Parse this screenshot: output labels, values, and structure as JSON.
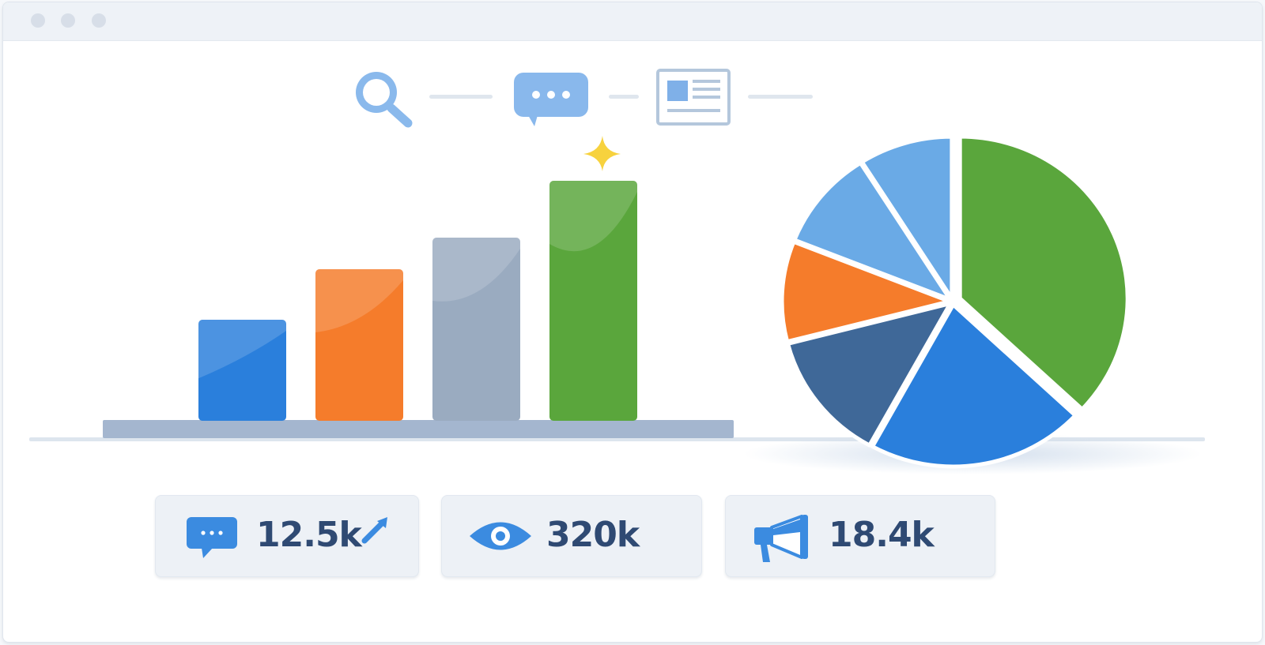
{
  "colors": {
    "blue": "#2a7fdc",
    "orange": "#f57c2b",
    "gray": "#9aabc0",
    "green": "#5aa63c",
    "dark_blue": "#3f6898",
    "light_blue": "#6aaae6",
    "stat_text": "#2f4a73",
    "icon_blue": "#3b8be0",
    "sparkle": "#f7d23e"
  },
  "toolbar_icons": [
    "search-icon",
    "chat-bubble-icon",
    "article-icon"
  ],
  "chart_data": [
    {
      "type": "bar",
      "categories": [
        "",
        "",
        "",
        ""
      ],
      "values": [
        3.2,
        4.8,
        5.8,
        7.6
      ],
      "colors": [
        "#2a7fdc",
        "#f57c2b",
        "#9aabc0",
        "#5aa63c"
      ],
      "ylim": [
        0,
        8
      ],
      "title": "",
      "xlabel": "",
      "ylabel": "",
      "grid": false
    },
    {
      "type": "pie",
      "labels": [
        "",
        "",
        "",
        "",
        "",
        ""
      ],
      "values": [
        37,
        21,
        13,
        10,
        10,
        9
      ],
      "colors": [
        "#5aa63c",
        "#2a7fdc",
        "#3f6898",
        "#f57c2b",
        "#6aaae6",
        "#6aaae6"
      ],
      "exploded_slice": 0,
      "title": ""
    }
  ],
  "stats": [
    {
      "icon": "chat-bubble-icon",
      "value": "12.5k",
      "trend_icon": "trend-up-icon"
    },
    {
      "icon": "eye-icon",
      "value": "320k"
    },
    {
      "icon": "megaphone-icon",
      "value": "18.4k"
    }
  ]
}
